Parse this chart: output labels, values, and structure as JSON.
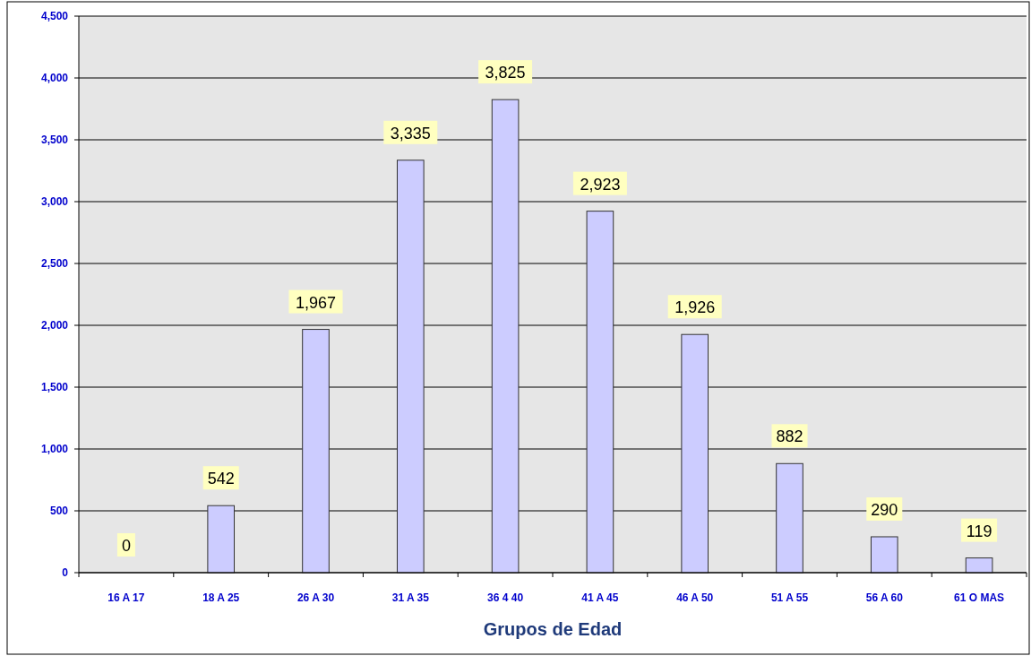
{
  "chart_data": {
    "type": "bar",
    "xlabel": "Grupos de Edad",
    "categories": [
      "16 A 17",
      "18 A 25",
      "26 A 30",
      "31 A 35",
      "36 4 40",
      "41 A 45",
      "46 A 50",
      "51 A 55",
      "56 A 60",
      "61 O MAS"
    ],
    "values": [
      0,
      542,
      1967,
      3335,
      3825,
      2923,
      1926,
      882,
      290,
      119
    ],
    "color": "#ccccff",
    "ylim": [
      0,
      4500
    ],
    "yticks": [
      0,
      500,
      {
        "value": 1000,
        "label": "1,000"
      },
      {
        "value": 1500,
        "label": "1,500"
      },
      {
        "value": 2000,
        "label": "2,000"
      },
      {
        "value": 2500,
        "label": "2,500"
      },
      {
        "value": 3000,
        "label": "3,000"
      },
      {
        "value": 3500,
        "label": "3,500"
      },
      {
        "value": 4000,
        "label": "4,000"
      },
      {
        "value": 4500,
        "label": "4,500"
      }
    ],
    "value_labels": [
      "0",
      "542",
      "1,967",
      "3,335",
      "3,825",
      "2,923",
      "1,926",
      "882",
      "290",
      "119"
    ],
    "grid": "y"
  }
}
